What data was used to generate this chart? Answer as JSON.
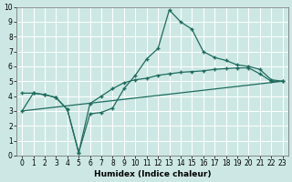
{
  "xlabel": "Humidex (Indice chaleur)",
  "xlim": [
    -0.5,
    23.5
  ],
  "ylim": [
    0,
    10
  ],
  "xticks": [
    0,
    1,
    2,
    3,
    4,
    5,
    6,
    7,
    8,
    9,
    10,
    11,
    12,
    13,
    14,
    15,
    16,
    17,
    18,
    19,
    20,
    21,
    22,
    23
  ],
  "yticks": [
    0,
    1,
    2,
    3,
    4,
    5,
    6,
    7,
    8,
    9,
    10
  ],
  "bg_color": "#cde8e4",
  "grid_color": "#ffffff",
  "line_color": "#1e6b5e",
  "line1_x": [
    0,
    1,
    2,
    3,
    4,
    5,
    6,
    7,
    8,
    9,
    10,
    11,
    12,
    13,
    14,
    15,
    16,
    17,
    18,
    19,
    20,
    21,
    22,
    23
  ],
  "line1_y": [
    3.0,
    4.2,
    4.1,
    3.9,
    3.1,
    0.2,
    2.8,
    2.9,
    3.2,
    4.5,
    5.4,
    6.5,
    7.2,
    9.8,
    9.0,
    8.5,
    7.0,
    6.6,
    6.4,
    6.1,
    6.0,
    5.8,
    5.1,
    5.0
  ],
  "line2_x": [
    0,
    1,
    2,
    3,
    4,
    5,
    6,
    7,
    8,
    9,
    10,
    11,
    12,
    13,
    14,
    15,
    16,
    17,
    18,
    19,
    20,
    21,
    22,
    23
  ],
  "line2_y": [
    4.2,
    4.2,
    4.1,
    3.9,
    3.1,
    0.2,
    3.5,
    4.0,
    4.5,
    4.9,
    5.1,
    5.2,
    5.4,
    5.5,
    5.6,
    5.65,
    5.7,
    5.8,
    5.85,
    5.9,
    5.9,
    5.5,
    5.0,
    5.0
  ],
  "line3_x": [
    0,
    23
  ],
  "line3_y": [
    3.0,
    5.0
  ],
  "marker": "+",
  "marker_size": 3,
  "linewidth": 0.9
}
